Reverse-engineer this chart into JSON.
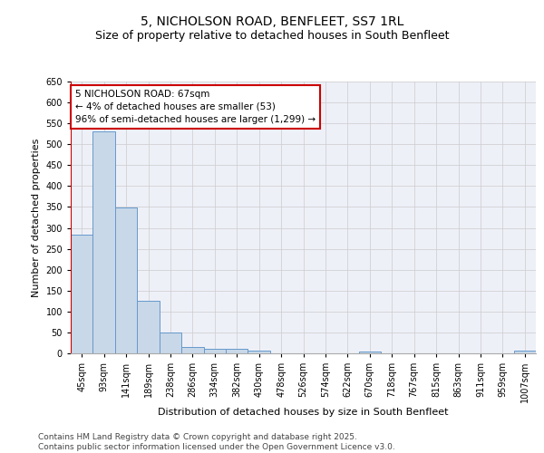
{
  "title_line1": "5, NICHOLSON ROAD, BENFLEET, SS7 1RL",
  "title_line2": "Size of property relative to detached houses in South Benfleet",
  "xlabel": "Distribution of detached houses by size in South Benfleet",
  "ylabel": "Number of detached properties",
  "categories": [
    "45sqm",
    "93sqm",
    "141sqm",
    "189sqm",
    "238sqm",
    "286sqm",
    "334sqm",
    "382sqm",
    "430sqm",
    "478sqm",
    "526sqm",
    "574sqm",
    "622sqm",
    "670sqm",
    "718sqm",
    "767sqm",
    "815sqm",
    "863sqm",
    "911sqm",
    "959sqm",
    "1007sqm"
  ],
  "values": [
    283,
    530,
    348,
    125,
    50,
    16,
    11,
    11,
    7,
    0,
    0,
    0,
    0,
    5,
    0,
    0,
    0,
    0,
    0,
    0,
    6
  ],
  "bar_color": "#c8d8e8",
  "bar_edge_color": "#6699cc",
  "vline_color": "#cc0000",
  "annotation_text": "5 NICHOLSON ROAD: 67sqm\n← 4% of detached houses are smaller (53)\n96% of semi-detached houses are larger (1,299) →",
  "annotation_box_color": "#ffffff",
  "annotation_box_edge": "#cc0000",
  "ylim": [
    0,
    650
  ],
  "yticks": [
    0,
    50,
    100,
    150,
    200,
    250,
    300,
    350,
    400,
    450,
    500,
    550,
    600,
    650
  ],
  "grid_color": "#cccccc",
  "background_color": "#eef0f8",
  "footer_text": "Contains HM Land Registry data © Crown copyright and database right 2025.\nContains public sector information licensed under the Open Government Licence v3.0.",
  "title_fontsize": 10,
  "subtitle_fontsize": 9,
  "axis_label_fontsize": 8,
  "tick_fontsize": 7,
  "annotation_fontsize": 7.5,
  "footer_fontsize": 6.5
}
